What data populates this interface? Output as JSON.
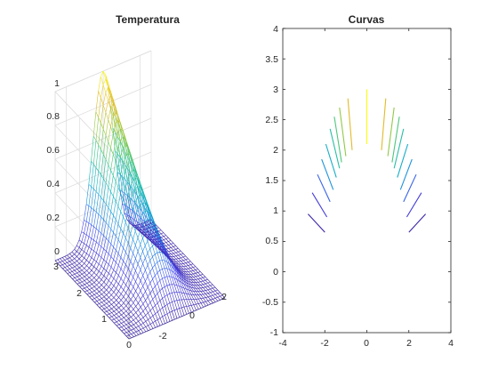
{
  "figure": {
    "colormap_name": "parula",
    "colormap_stops": [
      "#3e26a8",
      "#4746eb",
      "#1e8fdf",
      "#14b5c1",
      "#3cc58b",
      "#9bc93e",
      "#e6ba29",
      "#f9fb14"
    ]
  },
  "chart_data": [
    {
      "type": "surface-mesh",
      "title": "Temperatura",
      "xlabel": "",
      "ylabel": "",
      "zlabel": "",
      "x_ticks": [
        "-2",
        "0",
        "2"
      ],
      "y_ticks": [
        "0",
        "1",
        "2",
        "3"
      ],
      "z_ticks": [
        "0",
        "0.2",
        "0.4",
        "0.6",
        "0.8",
        "1"
      ],
      "xlim": [
        -2.6,
        2.6
      ],
      "ylim": [
        0,
        3
      ],
      "zlim": [
        0,
        1
      ],
      "grid": true,
      "surface": {
        "x_range": [
          -2.6,
          2.6
        ],
        "y_range": [
          0,
          3
        ],
        "z_max": 1
      }
    },
    {
      "type": "contour",
      "title": "Curvas",
      "xlabel": "",
      "ylabel": "",
      "x_ticks": [
        "-4",
        "-2",
        "0",
        "2",
        "4"
      ],
      "y_ticks": [
        "-1",
        "-0.5",
        "0",
        "0.5",
        "1",
        "1.5",
        "2",
        "2.5",
        "3",
        "3.5",
        "4"
      ],
      "xlim": [
        -4,
        4
      ],
      "ylim": [
        -1,
        4
      ],
      "grid": false,
      "levels": 10,
      "segments": [
        {
          "x1": -2.8,
          "y1": 0.95,
          "x2": -2.0,
          "y2": 0.65,
          "level": 0.0
        },
        {
          "x1": -2.6,
          "y1": 1.3,
          "x2": -1.9,
          "y2": 0.9,
          "level": 0.1
        },
        {
          "x1": -2.35,
          "y1": 1.6,
          "x2": -1.75,
          "y2": 1.15,
          "level": 0.2
        },
        {
          "x1": -2.15,
          "y1": 1.85,
          "x2": -1.6,
          "y2": 1.35,
          "level": 0.3
        },
        {
          "x1": -1.95,
          "y1": 2.1,
          "x2": -1.45,
          "y2": 1.55,
          "level": 0.4
        },
        {
          "x1": -1.75,
          "y1": 2.35,
          "x2": -1.3,
          "y2": 1.7,
          "level": 0.5
        },
        {
          "x1": -1.55,
          "y1": 2.55,
          "x2": -1.2,
          "y2": 1.8,
          "level": 0.6
        },
        {
          "x1": -1.3,
          "y1": 2.7,
          "x2": -1.0,
          "y2": 1.9,
          "level": 0.7
        },
        {
          "x1": -0.9,
          "y1": 2.85,
          "x2": -0.7,
          "y2": 2.0,
          "level": 0.85
        },
        {
          "x1": 0.0,
          "y1": 3.0,
          "x2": 0.0,
          "y2": 2.1,
          "level": 1.0
        },
        {
          "x1": 0.9,
          "y1": 2.85,
          "x2": 0.7,
          "y2": 2.0,
          "level": 0.85
        },
        {
          "x1": 1.3,
          "y1": 2.7,
          "x2": 1.0,
          "y2": 1.9,
          "level": 0.7
        },
        {
          "x1": 1.55,
          "y1": 2.55,
          "x2": 1.2,
          "y2": 1.8,
          "level": 0.6
        },
        {
          "x1": 1.75,
          "y1": 2.35,
          "x2": 1.3,
          "y2": 1.7,
          "level": 0.5
        },
        {
          "x1": 1.95,
          "y1": 2.1,
          "x2": 1.45,
          "y2": 1.55,
          "level": 0.4
        },
        {
          "x1": 2.15,
          "y1": 1.85,
          "x2": 1.6,
          "y2": 1.35,
          "level": 0.3
        },
        {
          "x1": 2.35,
          "y1": 1.6,
          "x2": 1.75,
          "y2": 1.15,
          "level": 0.2
        },
        {
          "x1": 2.6,
          "y1": 1.3,
          "x2": 1.9,
          "y2": 0.9,
          "level": 0.1
        },
        {
          "x1": 2.8,
          "y1": 0.95,
          "x2": 2.0,
          "y2": 0.65,
          "level": 0.0
        }
      ]
    }
  ]
}
